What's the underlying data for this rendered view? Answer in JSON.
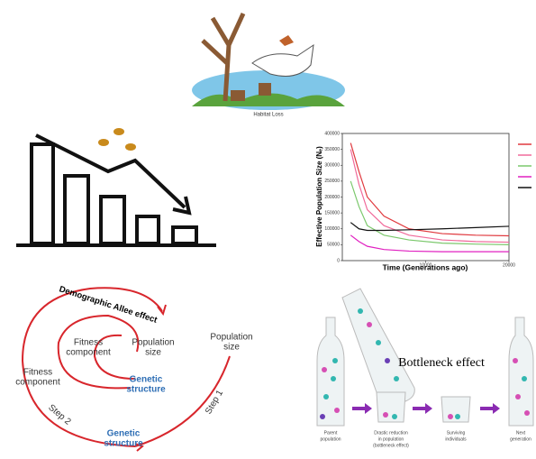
{
  "habitat": {
    "caption": "Habitat Loss"
  },
  "line_chart": {
    "type": "line",
    "ylabel": "Effective Population Size (Nₑ)",
    "xlabel": "Time (Generations ago)",
    "x": [
      1000,
      2000,
      3000,
      5000,
      8000,
      12000,
      16000,
      20000
    ],
    "xlim": [
      0,
      20000
    ],
    "xticks": [
      10000,
      20000
    ],
    "ylim": [
      0,
      400000
    ],
    "yticks": [
      0,
      50000,
      100000,
      150000,
      200000,
      250000,
      300000,
      350000,
      400000
    ],
    "series": [
      {
        "color": "#e0393e",
        "values": [
          370000,
          280000,
          200000,
          140000,
          100000,
          85000,
          80000,
          78000
        ]
      },
      {
        "color": "#f06a9a",
        "values": [
          350000,
          240000,
          160000,
          110000,
          80000,
          65000,
          60000,
          58000
        ]
      },
      {
        "color": "#7bc86c",
        "values": [
          250000,
          170000,
          110000,
          80000,
          65000,
          55000,
          52000,
          50000
        ]
      },
      {
        "color": "#e020c0",
        "values": [
          80000,
          60000,
          45000,
          35000,
          30000,
          28000,
          28000,
          28000
        ]
      },
      {
        "color": "#111111",
        "values": [
          120000,
          100000,
          95000,
          95000,
          97000,
          100000,
          104000,
          108000
        ]
      }
    ]
  },
  "allee": {
    "title": "Demographic Allee effect",
    "inner_fitness": [
      "Fitness",
      "component"
    ],
    "inner_population": [
      "Population",
      "size"
    ],
    "inner_genetic": [
      "Genetic",
      "structure"
    ],
    "outer_population": [
      "Population",
      "size"
    ],
    "outer_fitness": [
      "Fitness",
      "component"
    ],
    "step1": "Step 1",
    "step2": "Step 2",
    "outer_genetic": [
      "Genetic",
      "structure"
    ]
  },
  "bottleneck": {
    "title": "Bottleneck effect",
    "stages": [
      [
        "Parent",
        "population"
      ],
      [
        "Drastic reduction",
        "in population",
        "(bottleneck effect)"
      ],
      [
        "Surviving",
        "individuals"
      ],
      [
        "Next",
        "generation"
      ]
    ]
  }
}
